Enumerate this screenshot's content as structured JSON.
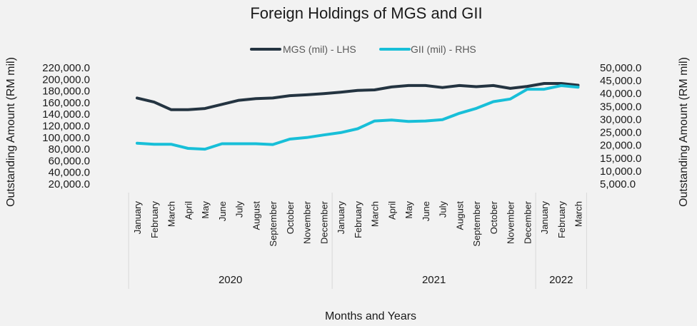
{
  "chart_data": {
    "type": "line",
    "title": "Foreign Holdings of MGS and GII",
    "xlabel": "Months and Years",
    "ylabel_left": "Outstanding Amount (RM mil)",
    "ylabel_right": "Outstanding Amount (RM mil)",
    "legend_position": "top-center",
    "grid": false,
    "categories": [
      "January",
      "February",
      "March",
      "April",
      "May",
      "June",
      "July",
      "August",
      "September",
      "October",
      "November",
      "December",
      "January",
      "February",
      "March",
      "April",
      "May",
      "June",
      "July",
      "August",
      "September",
      "October",
      "November",
      "December",
      "January",
      "February",
      "March"
    ],
    "year_groups": [
      {
        "label": "2020",
        "count": 12
      },
      {
        "label": "2021",
        "count": 12
      },
      {
        "label": "2022",
        "count": 3
      }
    ],
    "left_axis": {
      "ticks": [
        "220,000.0",
        "200,000.0",
        "180,000.0",
        "160,000.0",
        "140,000.0",
        "120,000.0",
        "100,000.0",
        "80,000.0",
        "60,000.0",
        "40,000.0",
        "20,000.0"
      ],
      "ylim": [
        20000,
        220000
      ]
    },
    "right_axis": {
      "ticks": [
        "50,000.0",
        "45,000.0",
        "40,000.0",
        "35,000.0",
        "30,000.0",
        "25,000.0",
        "20,000.0",
        "15,000.0",
        "10,000.0",
        "5,000.0"
      ],
      "ylim": [
        5000,
        50000
      ]
    },
    "series": [
      {
        "name": "MGS (mil) - LHS",
        "axis": "left",
        "color": "#243441",
        "values": [
          168000,
          161000,
          148000,
          148000,
          150000,
          157000,
          164000,
          167000,
          168000,
          172000,
          173500,
          175500,
          178000,
          181000,
          182000,
          187000,
          189500,
          189500,
          186000,
          189500,
          187500,
          189500,
          184500,
          188000,
          193000,
          193000,
          190000
        ]
      },
      {
        "name": "GII (mil) - RHS",
        "axis": "right",
        "color": "#18bfd8",
        "values": [
          20800,
          20400,
          20400,
          18800,
          18500,
          20600,
          20600,
          20600,
          20300,
          22400,
          23000,
          24000,
          24900,
          26400,
          29400,
          29800,
          29200,
          29400,
          29900,
          32400,
          34300,
          36900,
          37900,
          41700,
          41700,
          43100,
          42500
        ]
      }
    ]
  }
}
